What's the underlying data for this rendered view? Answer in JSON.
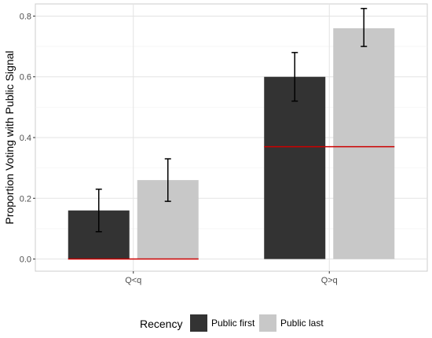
{
  "chart_data": {
    "type": "bar",
    "categories": [
      "Q<q",
      "Q>q"
    ],
    "series": [
      {
        "name": "Public first",
        "values": [
          0.16,
          0.6
        ],
        "error_low": [
          0.09,
          0.52
        ],
        "error_high": [
          0.23,
          0.68
        ],
        "color": "#333333"
      },
      {
        "name": "Public last",
        "values": [
          0.26,
          0.76
        ],
        "error_low": [
          0.19,
          0.7
        ],
        "error_high": [
          0.33,
          0.825
        ],
        "color": "#c8c8c8"
      }
    ],
    "reference_lines": [
      {
        "category": "Q<q",
        "value": 0.0,
        "color": "#cc0000"
      },
      {
        "category": "Q>q",
        "value": 0.37,
        "color": "#cc0000"
      }
    ],
    "title": "",
    "xlabel": "",
    "ylabel": "Proportion Voting with Public Signal",
    "ylim": [
      -0.04,
      0.84
    ],
    "yticks": [
      0.0,
      0.2,
      0.4,
      0.6,
      0.8
    ],
    "ytick_labels": [
      "0.0",
      "0.2",
      "0.4",
      "0.6",
      "0.8"
    ],
    "grid": true,
    "legend": {
      "title": "Recency",
      "position": "bottom"
    }
  }
}
